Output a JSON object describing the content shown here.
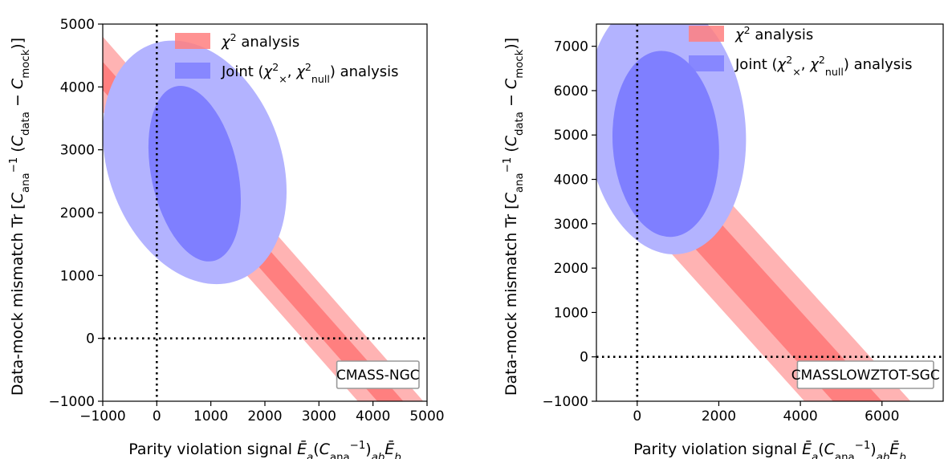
{
  "chart_data": [
    {
      "type": "contour",
      "panel_label": "CMASS-NGC",
      "xlabel": "Parity violation signal Ē_a(C_ana^-1)_ab Ē_b",
      "ylabel": "Data-mock mismatch  Tr[C_ana^-1(C_data − C_mock)]",
      "xlim": [
        -1000,
        5000
      ],
      "ylim": [
        -1000,
        5000
      ],
      "xticks": [
        "−1000",
        "0",
        "1000",
        "2000",
        "3000",
        "4000",
        "5000"
      ],
      "yticks": [
        "−1000",
        "0",
        "1000",
        "2000",
        "3000",
        "4000",
        "5000"
      ],
      "xtick_values": [
        -1000,
        0,
        1000,
        2000,
        3000,
        4000,
        5000
      ],
      "ytick_values": [
        -1000,
        0,
        1000,
        2000,
        3000,
        4000,
        5000
      ],
      "reference_lines": {
        "x": 0,
        "y": 0,
        "style": "dotted"
      },
      "legend_placement": "upper-right",
      "series": [
        {
          "name": "χ² analysis",
          "color_outer": "#ffb3b3",
          "color_inner": "#ff7f7f",
          "band_slope": -1,
          "band_outer": [
            [
              [
                -1000,
                4800
              ],
              [
                4930,
                -1000
              ]
            ],
            [
              [
                -1000,
                3600
              ],
              [
                3720,
                -1000
              ]
            ]
          ],
          "band_inner": [
            [
              [
                -1000,
                4400
              ],
              [
                4560,
                -1000
              ]
            ],
            [
              [
                -1000,
                3950
              ],
              [
                4080,
                -1000
              ]
            ]
          ]
        },
        {
          "name": "Joint (χ²_×, χ²_null) analysis",
          "color_outer": "#b3b3ff",
          "color_inner": "#7f7fff",
          "ellipse_outer": {
            "center": [
              700,
              2800
            ],
            "rx": 1600,
            "ry": 2000,
            "tilt_deg": -20
          },
          "ellipse_inner": {
            "center": [
              700,
              2620
            ],
            "rx": 800,
            "ry": 1420,
            "tilt_deg": -12
          }
        }
      ]
    },
    {
      "type": "contour",
      "panel_label": "CMASSLOWZTOT-SGC",
      "xlabel": "Parity violation signal Ē_a(C_ana^-1)_ab Ē_b",
      "ylabel": "Data-mock mismatch  Tr[C_ana^-1(C_data − C_mock)]",
      "xlim": [
        -1000,
        7500
      ],
      "ylim": [
        -1000,
        7500
      ],
      "xticks": [
        "0",
        "2000",
        "4000",
        "6000"
      ],
      "yticks": [
        "−1000",
        "0",
        "1000",
        "2000",
        "3000",
        "4000",
        "5000",
        "6000",
        "7000"
      ],
      "xtick_values": [
        0,
        2000,
        4000,
        6000
      ],
      "ytick_values": [
        -1000,
        0,
        1000,
        2000,
        3000,
        4000,
        5000,
        6000,
        7000
      ],
      "reference_lines": {
        "x": 0,
        "y": 0,
        "style": "dotted"
      },
      "legend_placement": "upper-right",
      "series": [
        {
          "name": "χ² analysis",
          "color_outer": "#ffb3b3",
          "color_inner": "#ff7f7f",
          "band_slope": -1,
          "band_outer": [
            [
              [
                -1000,
                6800
              ],
              [
                6700,
                -1000
              ]
            ],
            [
              [
                -1000,
                4200
              ],
              [
                4100,
                -1000
              ]
            ]
          ],
          "band_inner": [
            [
              [
                -1000,
                6100
              ],
              [
                6000,
                -1000
              ]
            ],
            [
              [
                -1000,
                4900
              ],
              [
                4800,
                -1000
              ]
            ]
          ]
        },
        {
          "name": "Joint (χ²_×, χ²_null) analysis",
          "color_outer": "#b3b3ff",
          "color_inner": "#7f7fff",
          "ellipse_outer": {
            "center": [
              700,
              5200
            ],
            "rx": 1950,
            "ry": 2900,
            "tilt_deg": -6
          },
          "ellipse_inner": {
            "center": [
              700,
              4800
            ],
            "rx": 1300,
            "ry": 2100,
            "tilt_deg": -4
          }
        }
      ]
    }
  ]
}
